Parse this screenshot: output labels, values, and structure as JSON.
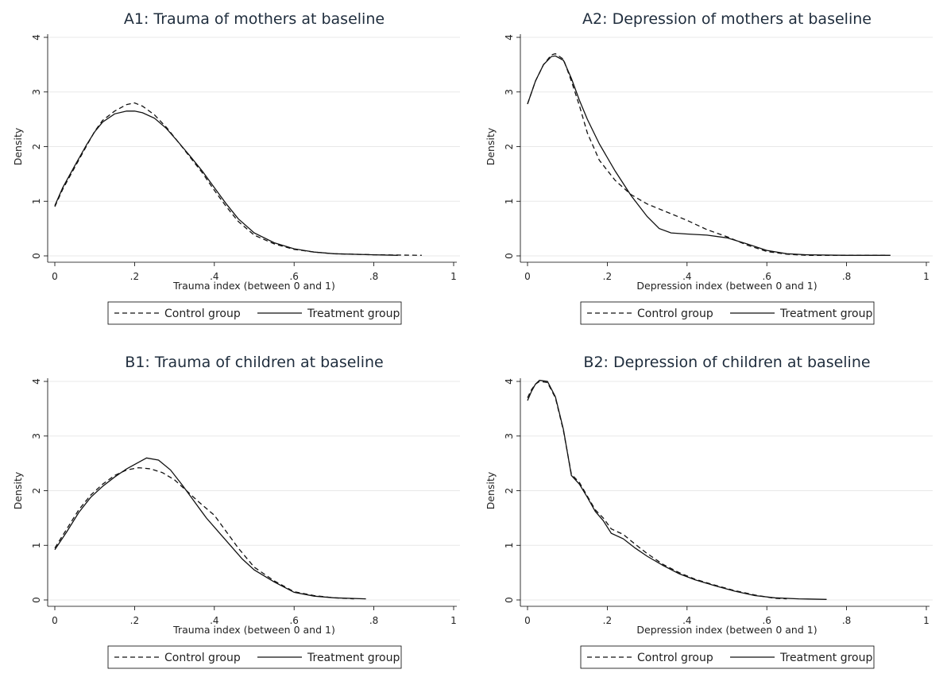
{
  "chart_data": [
    {
      "type": "line",
      "title": "A1: Trauma of mothers at baseline",
      "xlabel": "Trauma index (between 0 and 1)",
      "ylabel": "Density",
      "xlim": [
        0,
        1
      ],
      "ylim": [
        0,
        4
      ],
      "xticks": [
        "0",
        ".2",
        ".4",
        ".6",
        ".8",
        "1"
      ],
      "yticks": [
        "0",
        "1",
        "2",
        "3",
        "4"
      ],
      "grid": true,
      "legend": "bottom",
      "series": [
        {
          "name": "Control group",
          "style": "dashed",
          "points": [
            [
              0,
              0.9
            ],
            [
              0.02,
              1.22
            ],
            [
              0.05,
              1.62
            ],
            [
              0.08,
              2.02
            ],
            [
              0.1,
              2.28
            ],
            [
              0.12,
              2.48
            ],
            [
              0.15,
              2.65
            ],
            [
              0.18,
              2.77
            ],
            [
              0.2,
              2.8
            ],
            [
              0.22,
              2.74
            ],
            [
              0.25,
              2.58
            ],
            [
              0.28,
              2.35
            ],
            [
              0.31,
              2.08
            ],
            [
              0.34,
              1.8
            ],
            [
              0.37,
              1.52
            ],
            [
              0.4,
              1.2
            ],
            [
              0.43,
              0.9
            ],
            [
              0.46,
              0.63
            ],
            [
              0.5,
              0.38
            ],
            [
              0.55,
              0.22
            ],
            [
              0.6,
              0.12
            ],
            [
              0.65,
              0.07
            ],
            [
              0.7,
              0.04
            ],
            [
              0.8,
              0.02
            ],
            [
              0.92,
              0.01
            ]
          ]
        },
        {
          "name": "Treatment group",
          "style": "solid",
          "points": [
            [
              0,
              0.92
            ],
            [
              0.02,
              1.25
            ],
            [
              0.05,
              1.65
            ],
            [
              0.08,
              2.04
            ],
            [
              0.1,
              2.27
            ],
            [
              0.12,
              2.45
            ],
            [
              0.15,
              2.6
            ],
            [
              0.18,
              2.65
            ],
            [
              0.2,
              2.65
            ],
            [
              0.22,
              2.62
            ],
            [
              0.25,
              2.52
            ],
            [
              0.28,
              2.33
            ],
            [
              0.31,
              2.08
            ],
            [
              0.34,
              1.82
            ],
            [
              0.37,
              1.55
            ],
            [
              0.4,
              1.25
            ],
            [
              0.43,
              0.95
            ],
            [
              0.46,
              0.68
            ],
            [
              0.5,
              0.42
            ],
            [
              0.55,
              0.24
            ],
            [
              0.6,
              0.13
            ],
            [
              0.65,
              0.07
            ],
            [
              0.7,
              0.04
            ],
            [
              0.8,
              0.02
            ],
            [
              0.86,
              0.01
            ]
          ]
        }
      ]
    },
    {
      "type": "line",
      "title": "A2: Depression of mothers at baseline",
      "xlabel": "Depression index (between 0 and 1)",
      "ylabel": "Density",
      "xlim": [
        0,
        1
      ],
      "ylim": [
        0,
        4
      ],
      "xticks": [
        "0",
        ".2",
        ".4",
        ".6",
        ".8",
        "1"
      ],
      "yticks": [
        "0",
        "1",
        "2",
        "3",
        "4"
      ],
      "grid": true,
      "legend": "bottom",
      "series": [
        {
          "name": "Control group",
          "style": "dashed",
          "points": [
            [
              0,
              2.78
            ],
            [
              0.02,
              3.2
            ],
            [
              0.04,
              3.5
            ],
            [
              0.06,
              3.68
            ],
            [
              0.07,
              3.7
            ],
            [
              0.09,
              3.6
            ],
            [
              0.11,
              3.2
            ],
            [
              0.13,
              2.75
            ],
            [
              0.15,
              2.25
            ],
            [
              0.18,
              1.75
            ],
            [
              0.22,
              1.38
            ],
            [
              0.26,
              1.12
            ],
            [
              0.3,
              0.95
            ],
            [
              0.35,
              0.8
            ],
            [
              0.4,
              0.65
            ],
            [
              0.45,
              0.48
            ],
            [
              0.5,
              0.35
            ],
            [
              0.55,
              0.2
            ],
            [
              0.6,
              0.08
            ],
            [
              0.65,
              0.03
            ],
            [
              0.7,
              0.01
            ],
            [
              0.8,
              0.01
            ],
            [
              0.9,
              0.01
            ]
          ]
        },
        {
          "name": "Treatment group",
          "style": "solid",
          "points": [
            [
              0,
              2.78
            ],
            [
              0.02,
              3.2
            ],
            [
              0.04,
              3.5
            ],
            [
              0.06,
              3.65
            ],
            [
              0.07,
              3.66
            ],
            [
              0.09,
              3.58
            ],
            [
              0.11,
              3.25
            ],
            [
              0.13,
              2.85
            ],
            [
              0.15,
              2.5
            ],
            [
              0.18,
              2.05
            ],
            [
              0.22,
              1.55
            ],
            [
              0.26,
              1.1
            ],
            [
              0.3,
              0.72
            ],
            [
              0.33,
              0.5
            ],
            [
              0.36,
              0.42
            ],
            [
              0.4,
              0.4
            ],
            [
              0.45,
              0.38
            ],
            [
              0.5,
              0.33
            ],
            [
              0.55,
              0.22
            ],
            [
              0.6,
              0.1
            ],
            [
              0.65,
              0.04
            ],
            [
              0.7,
              0.02
            ],
            [
              0.8,
              0.01
            ],
            [
              0.91,
              0.01
            ]
          ]
        }
      ]
    },
    {
      "type": "line",
      "title": "B1: Trauma of children at baseline",
      "xlabel": "Trauma index (between 0 and 1)",
      "ylabel": "Density",
      "xlim": [
        0,
        1
      ],
      "ylim": [
        0,
        4
      ],
      "xticks": [
        "0",
        ".2",
        ".4",
        ".6",
        ".8",
        "1"
      ],
      "yticks": [
        "0",
        "1",
        "2",
        "3",
        "4"
      ],
      "grid": true,
      "legend": "bottom",
      "series": [
        {
          "name": "Control group",
          "style": "dashed",
          "points": [
            [
              0,
              0.95
            ],
            [
              0.03,
              1.3
            ],
            [
              0.06,
              1.65
            ],
            [
              0.09,
              1.92
            ],
            [
              0.12,
              2.12
            ],
            [
              0.15,
              2.28
            ],
            [
              0.18,
              2.38
            ],
            [
              0.21,
              2.42
            ],
            [
              0.24,
              2.4
            ],
            [
              0.27,
              2.33
            ],
            [
              0.3,
              2.2
            ],
            [
              0.33,
              2.0
            ],
            [
              0.36,
              1.8
            ],
            [
              0.4,
              1.55
            ],
            [
              0.43,
              1.25
            ],
            [
              0.46,
              0.95
            ],
            [
              0.5,
              0.6
            ],
            [
              0.55,
              0.35
            ],
            [
              0.6,
              0.15
            ],
            [
              0.65,
              0.08
            ],
            [
              0.7,
              0.04
            ],
            [
              0.75,
              0.02
            ]
          ]
        },
        {
          "name": "Treatment group",
          "style": "solid",
          "points": [
            [
              0,
              0.92
            ],
            [
              0.03,
              1.25
            ],
            [
              0.06,
              1.6
            ],
            [
              0.09,
              1.88
            ],
            [
              0.12,
              2.08
            ],
            [
              0.15,
              2.25
            ],
            [
              0.18,
              2.4
            ],
            [
              0.21,
              2.52
            ],
            [
              0.23,
              2.6
            ],
            [
              0.26,
              2.56
            ],
            [
              0.29,
              2.38
            ],
            [
              0.32,
              2.1
            ],
            [
              0.35,
              1.8
            ],
            [
              0.38,
              1.5
            ],
            [
              0.41,
              1.25
            ],
            [
              0.44,
              1.0
            ],
            [
              0.47,
              0.75
            ],
            [
              0.5,
              0.55
            ],
            [
              0.55,
              0.33
            ],
            [
              0.6,
              0.14
            ],
            [
              0.65,
              0.07
            ],
            [
              0.7,
              0.04
            ],
            [
              0.78,
              0.02
            ]
          ]
        }
      ]
    },
    {
      "type": "line",
      "title": "B2: Depression of children at baseline",
      "xlabel": "Depression index (between 0 and 1)",
      "ylabel": "Density",
      "xlim": [
        0,
        1
      ],
      "ylim": [
        0,
        4
      ],
      "xticks": [
        "0",
        ".2",
        ".4",
        ".6",
        ".8",
        "1"
      ],
      "yticks": [
        "0",
        "1",
        "2",
        "3",
        "4"
      ],
      "grid": true,
      "legend": "bottom",
      "series": [
        {
          "name": "Control group",
          "style": "dashed",
          "points": [
            [
              0,
              3.7
            ],
            [
              0.01,
              3.85
            ],
            [
              0.02,
              3.95
            ],
            [
              0.03,
              4.0
            ],
            [
              0.05,
              3.98
            ],
            [
              0.07,
              3.7
            ],
            [
              0.09,
              3.1
            ],
            [
              0.11,
              2.3
            ],
            [
              0.13,
              2.15
            ],
            [
              0.15,
              1.9
            ],
            [
              0.17,
              1.65
            ],
            [
              0.19,
              1.5
            ],
            [
              0.21,
              1.3
            ],
            [
              0.24,
              1.2
            ],
            [
              0.27,
              1.02
            ],
            [
              0.3,
              0.85
            ],
            [
              0.34,
              0.65
            ],
            [
              0.38,
              0.5
            ],
            [
              0.42,
              0.38
            ],
            [
              0.47,
              0.27
            ],
            [
              0.52,
              0.17
            ],
            [
              0.57,
              0.09
            ],
            [
              0.62,
              0.03
            ],
            [
              0.65,
              0.02
            ]
          ]
        },
        {
          "name": "Treatment group",
          "style": "solid",
          "points": [
            [
              0,
              3.65
            ],
            [
              0.01,
              3.82
            ],
            [
              0.02,
              3.95
            ],
            [
              0.03,
              4.02
            ],
            [
              0.05,
              4.0
            ],
            [
              0.07,
              3.72
            ],
            [
              0.09,
              3.12
            ],
            [
              0.11,
              2.28
            ],
            [
              0.13,
              2.12
            ],
            [
              0.15,
              1.88
            ],
            [
              0.17,
              1.62
            ],
            [
              0.19,
              1.45
            ],
            [
              0.21,
              1.22
            ],
            [
              0.24,
              1.12
            ],
            [
              0.27,
              0.95
            ],
            [
              0.3,
              0.8
            ],
            [
              0.34,
              0.63
            ],
            [
              0.38,
              0.48
            ],
            [
              0.42,
              0.37
            ],
            [
              0.47,
              0.26
            ],
            [
              0.52,
              0.16
            ],
            [
              0.57,
              0.08
            ],
            [
              0.62,
              0.04
            ],
            [
              0.68,
              0.02
            ],
            [
              0.75,
              0.01
            ]
          ]
        }
      ]
    }
  ]
}
